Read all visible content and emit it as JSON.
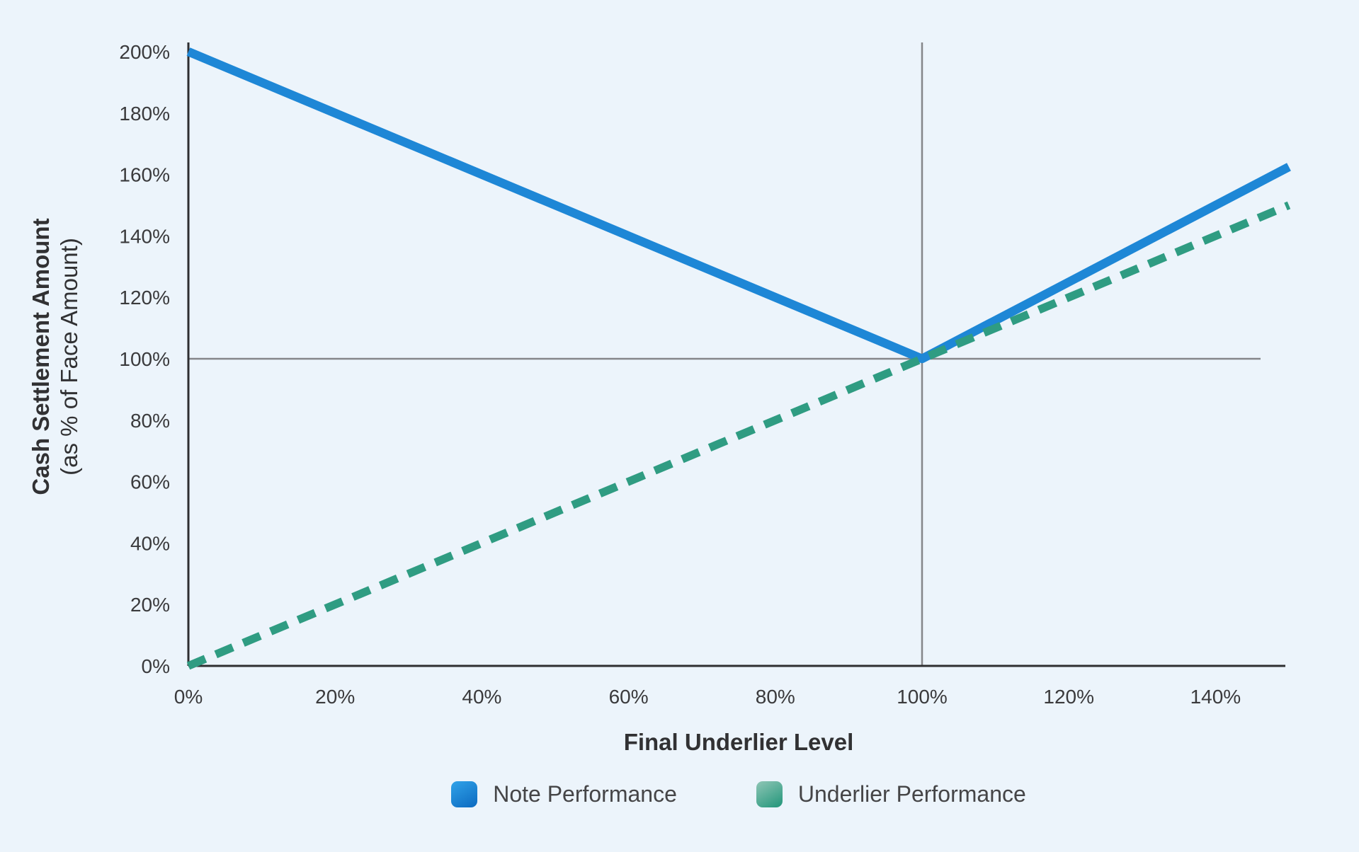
{
  "chart_data": {
    "type": "line",
    "title": "",
    "xlabel": "Final Underlier Level",
    "ylabel": "Cash Settlement Amount",
    "ylabel_sub": "(as % of Face Amount)",
    "xlim": [
      0,
      150
    ],
    "ylim": [
      0,
      200
    ],
    "x_ticks": [
      0,
      20,
      40,
      60,
      80,
      100,
      120,
      140
    ],
    "y_ticks": [
      0,
      20,
      40,
      60,
      80,
      100,
      120,
      140,
      160,
      180,
      200
    ],
    "tick_label_suffix": "%",
    "grid": false,
    "legend_position": "bottom",
    "reference_lines": [
      {
        "axis": "y",
        "value": 100
      },
      {
        "axis": "x",
        "value": 100
      }
    ],
    "series": [
      {
        "name": "Note Performance",
        "style": "solid",
        "color": "#1e87d6",
        "swatch_gradient": [
          "#31a3e9",
          "#0f6fc4"
        ],
        "points": [
          [
            0,
            200
          ],
          [
            100,
            100
          ],
          [
            150,
            162.5
          ]
        ]
      },
      {
        "name": "Underlier Performance",
        "style": "dashed",
        "color": "#2f9c82",
        "swatch_gradient": [
          "#8fc6b6",
          "#2c9a7f"
        ],
        "points": [
          [
            0,
            0
          ],
          [
            150,
            150
          ]
        ]
      }
    ]
  },
  "colors": {
    "background": "#ecf4fb",
    "axis": "#2e2e30",
    "reference_line": "#85868a",
    "tick_text": "#3a3a3c",
    "title_text": "#313133",
    "legend_text": "#454547"
  }
}
